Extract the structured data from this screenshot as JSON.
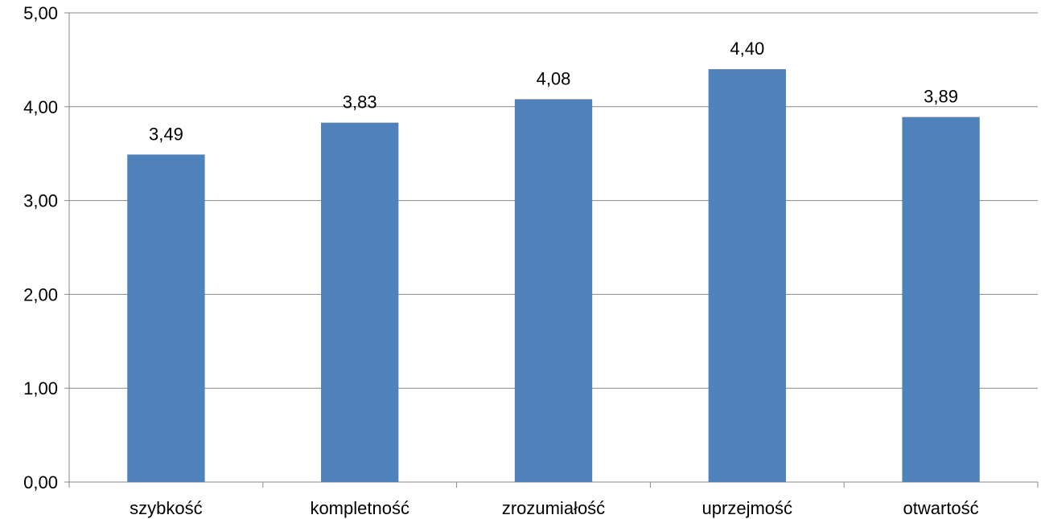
{
  "chart_data": {
    "type": "bar",
    "categories": [
      "szybkość",
      "kompletność",
      "zrozumiałość",
      "uprzejmość",
      "otwartość"
    ],
    "values": [
      3.49,
      3.83,
      4.08,
      4.4,
      3.89
    ],
    "value_labels": [
      "3,49",
      "3,83",
      "4,08",
      "4,40",
      "3,89"
    ],
    "y_ticks": [
      0,
      1,
      2,
      3,
      4,
      5
    ],
    "y_tick_labels": [
      "0,00",
      "1,00",
      "2,00",
      "3,00",
      "4,00",
      "5,00"
    ],
    "ylim": [
      0,
      5
    ],
    "title": "",
    "xlabel": "",
    "ylabel": "",
    "grid": true,
    "legend": "none"
  },
  "colors": {
    "bar": "#4F81BD",
    "grid": "#898989",
    "axis": "#898989",
    "text": "#000000"
  }
}
